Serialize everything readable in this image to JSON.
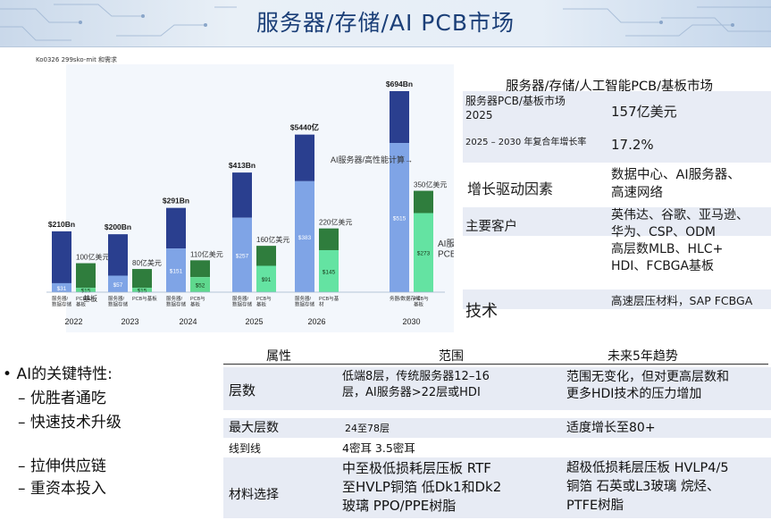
{
  "title": "服务器/存储/AI PCB市场",
  "chart_tag": "Ko0326 299sko-mit 和需求",
  "chart_data": {
    "type": "bar",
    "categories": [
      "2022",
      "2023",
      "2024",
      "2025",
      "2026",
      "2030"
    ],
    "series": [
      {
        "key": "server_total",
        "values": [
          210,
          200,
          291,
          413,
          544,
          694
        ]
      },
      {
        "key": "server_lower",
        "values": [
          31,
          57,
          151,
          257,
          383,
          515
        ]
      },
      {
        "key": "pcb",
        "values": [
          100,
          80,
          110,
          160,
          220,
          350
        ]
      },
      {
        "key": "pcb_lower",
        "values": [
          15,
          15,
          52,
          91,
          145,
          273
        ]
      }
    ],
    "total_labels": [
      "$210Bn",
      "$200Bn",
      "$291Bn",
      "$413Bn",
      "$5440亿",
      "$694Bn"
    ],
    "pcb_labels": [
      "100亿美元",
      "80亿美元",
      "110亿美元",
      "160亿美元",
      "220亿美元",
      "350亿美元"
    ],
    "inner_labels": [
      "$31",
      "$57",
      "$151",
      "$257",
      "$383",
      "$515"
    ],
    "inner_labels2": [
      "$15",
      "$15",
      "$52",
      "$91",
      "$145",
      "$273"
    ],
    "below_a": [
      "服务器/\n数据存储",
      "服务器/\n数据存储",
      "服务器/\n数据存储",
      "服务器/\n数据存储",
      "服务器/\n数据存储",
      "务器/数据存储"
    ],
    "below_b": [
      "PCB &\n基板",
      "PCB与基板",
      "PCB与\n基板",
      "PCB与\n基板",
      "PCB与基\n材",
      "PCB与\n基板"
    ],
    "annotation_ai": "AI服务器/高性能计算→",
    "annotation_hpc": "AI服务器/HPC\nPCB及*",
    "extra_label_2022": "基板"
  },
  "colors": {
    "dark": "#2a3f8f",
    "light": "#7fa4e6",
    "green_dark": "#2f7d3d",
    "green_light": "#5fd88e",
    "mint": "#64e3a2"
  },
  "market": {
    "subtitle": "服务器/存储/人工智能PCB/基板市场",
    "rows": [
      {
        "k": "服务器PCB/基板市场\n2025",
        "v": "157亿美元"
      },
      {
        "k": "2025 – 2030 年复合年增长率",
        "v": "17.2%"
      },
      {
        "k": "增长驱动因素",
        "v": "数据中心、AI服务器、\n高速网络"
      },
      {
        "k": "主要客户",
        "v": "英伟达、谷歌、亚马逊、\n华为、CSP、ODM"
      },
      {
        "k": "",
        "v": "高层数MLB、HLC+\nHDI、FCBGA基板"
      },
      {
        "k": "技术",
        "v": "高速层压材料，SAP FCBGA"
      }
    ]
  },
  "bullets": {
    "title": "AI的关键特性:",
    "items": [
      "– 优胜者通吃",
      "– 快速技术升级",
      "– 拉伸供应链",
      "– 重资本投入"
    ]
  },
  "table": {
    "headers": [
      "属性",
      "范围",
      "未来5年趋势"
    ],
    "rows": [
      {
        "attr": "层数",
        "range": "低端8层，传统服务器12–16\n层，AI服务器>22层或HDI",
        "trend": "范围无变化，但对更高层数和\n更多HDI技术的压力增加"
      },
      {
        "attr": "最大层数",
        "range": "24至78层",
        "trend": "适度增长至80+"
      },
      {
        "attr": "线到线",
        "range": "4密耳 3.5密耳",
        "trend": ""
      },
      {
        "attr": "材料选择",
        "range": "中至极低损耗层压板 RTF\n至HVLP铜箔 低Dk1和Dk2\n玻璃 PPO/PPE树脂",
        "trend": "超极低损耗层压板 HVLP4/5\n铜箔 石英或L3玻璃 烷烃、\nPTFE树脂"
      }
    ]
  }
}
